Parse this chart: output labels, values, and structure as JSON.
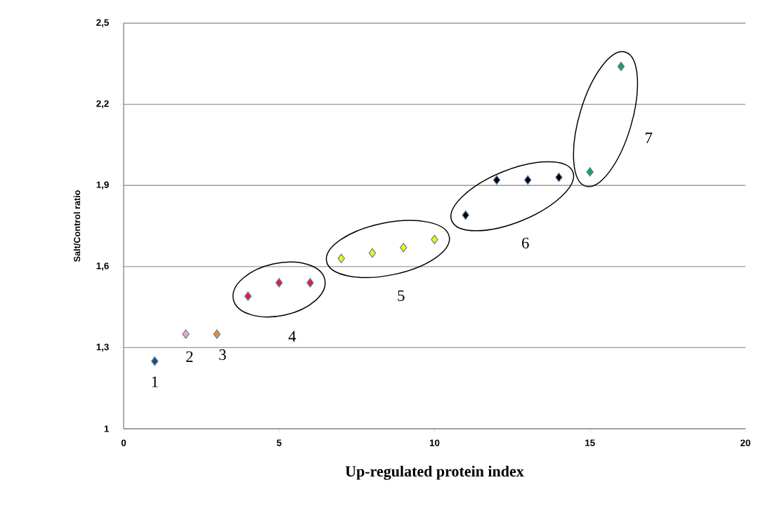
{
  "chart_data": {
    "type": "scatter",
    "xlabel": "Up-regulated protein index",
    "ylabel": "Salt/Control ratio",
    "xlim": [
      0,
      20
    ],
    "xticks": [
      0,
      5,
      10,
      15,
      20
    ],
    "ylim": [
      1,
      2.5
    ],
    "yticks": [
      1,
      {
        "value": 1.3,
        "label": "1,3"
      },
      {
        "value": 1.6,
        "label": "1,6"
      },
      {
        "value": 1.9,
        "label": "1,9"
      },
      {
        "value": 2.2,
        "label": "2,2"
      },
      {
        "value": 2.5,
        "label": "2,5"
      }
    ],
    "grid": "y",
    "marker": "diamond",
    "series": [
      {
        "color": "#1f4e79",
        "x": [
          1
        ],
        "values": [
          1.25
        ]
      },
      {
        "color": "#f4a6b4",
        "x": [
          2
        ],
        "values": [
          1.35
        ]
      },
      {
        "color": "#f28a1e",
        "x": [
          3
        ],
        "values": [
          1.35
        ]
      },
      {
        "color": "#ee1c25",
        "x": [
          4,
          5,
          6
        ],
        "values": [
          1.49,
          1.54,
          1.54
        ]
      },
      {
        "color": "#fff200",
        "x": [
          7,
          8,
          9,
          10
        ],
        "values": [
          1.63,
          1.65,
          1.67,
          1.7
        ]
      },
      {
        "color": "#000000",
        "x": [
          11,
          12,
          13,
          14
        ],
        "values": [
          1.79,
          1.92,
          1.92,
          1.93
        ]
      },
      {
        "color": "#22a04b",
        "x": [
          15,
          16
        ],
        "values": [
          1.95,
          2.34
        ]
      }
    ],
    "annotations": [
      "1",
      "2",
      "3",
      "4",
      "5",
      "6",
      "7"
    ]
  }
}
